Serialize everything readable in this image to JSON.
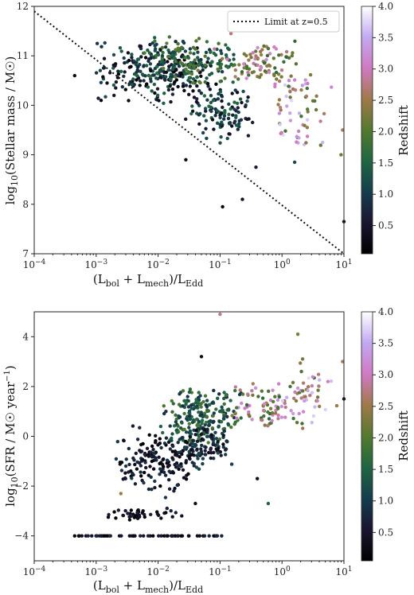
{
  "chart_data": [
    {
      "type": "scatter",
      "xscale": "log",
      "xlim": [
        0.0001,
        10
      ],
      "ylim": [
        7,
        12
      ],
      "xlabel": "(L_bol + L_mech)/L_Edd",
      "ylabel": "log10(Stellar mass / M☉)",
      "xticks": [
        0.0001,
        0.001,
        0.01,
        0.1,
        1,
        10
      ],
      "yticks": [
        7,
        8,
        9,
        10,
        11,
        12
      ],
      "legend": {
        "placement": "top-right",
        "entries": [
          "Limit at z=0.5"
        ]
      },
      "limit_line": {
        "name": "Limit at z=0.5",
        "style": "dotted",
        "x": [
          0.0001,
          10
        ],
        "y": [
          11.9,
          7.0
        ]
      },
      "colorbar": {
        "label": "Redshift",
        "range": [
          0.05,
          4.0
        ],
        "ticks": [
          0.5,
          1.0,
          1.5,
          2.0,
          2.5,
          3.0,
          3.5,
          4.0
        ]
      },
      "points_note": "approximately 800 points; values sampled to match visible distribution",
      "clusters": [
        {
          "logx_range": [
            -3.1,
            -0.9
          ],
          "y_range": [
            10.0,
            11.4
          ],
          "z_range": [
            0.05,
            1.6
          ],
          "n": 260
        },
        {
          "logx_range": [
            -2.4,
            -0.6
          ],
          "y_range": [
            10.4,
            11.4
          ],
          "z_range": [
            1.0,
            2.2
          ],
          "n": 150
        },
        {
          "logx_range": [
            -1.6,
            -0.4
          ],
          "y_range": [
            9.2,
            10.4
          ],
          "z_range": [
            0.3,
            1.6
          ],
          "n": 110
        },
        {
          "logx_range": [
            -1.2,
            0.4
          ],
          "y_range": [
            10.3,
            11.4
          ],
          "z_range": [
            1.6,
            3.2
          ],
          "n": 90
        },
        {
          "logx_range": [
            -0.3,
            0.9
          ],
          "y_range": [
            9.0,
            10.8
          ],
          "z_range": [
            1.8,
            3.8
          ],
          "n": 60
        }
      ],
      "outliers": [
        {
          "x": 0.00045,
          "y": 10.6,
          "z": 0.3
        },
        {
          "x": 0.0012,
          "y": 10.1,
          "z": 0.2
        },
        {
          "x": 0.0015,
          "y": 10.45,
          "z": 0.3
        },
        {
          "x": 0.11,
          "y": 7.95,
          "z": 0.2
        },
        {
          "x": 10,
          "y": 7.65,
          "z": 0.4
        },
        {
          "x": 0.23,
          "y": 8.1,
          "z": 0.5
        },
        {
          "x": 0.38,
          "y": 8.75,
          "z": 0.6
        },
        {
          "x": 1.6,
          "y": 8.85,
          "z": 1.2
        },
        {
          "x": 0.028,
          "y": 8.9,
          "z": 0.3
        },
        {
          "x": 0.15,
          "y": 11.45,
          "z": 2.7
        },
        {
          "x": 9.5,
          "y": 9.5,
          "z": 2.6
        },
        {
          "x": 9.0,
          "y": 9.0,
          "z": 2.2
        }
      ]
    },
    {
      "type": "scatter",
      "xscale": "log",
      "xlim": [
        0.0001,
        10
      ],
      "ylim": [
        -5,
        5
      ],
      "xlabel": "(L_bol + L_mech)/L_Edd",
      "ylabel": "log10(SFR / M☉ year⁻¹)",
      "xticks": [
        0.0001,
        0.001,
        0.01,
        0.1,
        1,
        10
      ],
      "yticks": [
        -4,
        -2,
        0,
        2,
        4
      ],
      "colorbar": {
        "label": "Redshift",
        "range": [
          0.05,
          4.0
        ],
        "ticks": [
          0.5,
          1.0,
          1.5,
          2.0,
          2.5,
          3.0,
          3.5,
          4.0
        ]
      },
      "points_note": "approximately 800 points; values sampled to match visible distribution",
      "clusters": [
        {
          "logx_range": [
            -2.0,
            -0.6
          ],
          "y_range": [
            -0.5,
            2.0
          ],
          "z_range": [
            0.8,
            2.0
          ],
          "n": 230
        },
        {
          "logx_range": [
            -2.8,
            -1.4
          ],
          "y_range": [
            -2.5,
            0.6
          ],
          "z_range": [
            0.05,
            1.0
          ],
          "n": 150
        },
        {
          "logx_range": [
            -1.8,
            -0.8
          ],
          "y_range": [
            -1.5,
            0.5
          ],
          "z_range": [
            0.2,
            1.2
          ],
          "n": 100
        },
        {
          "logx_range": [
            -1.0,
            0.5
          ],
          "y_range": [
            0.2,
            2.2
          ],
          "z_range": [
            1.6,
            3.4
          ],
          "n": 90
        },
        {
          "logx_range": [
            0.0,
            1.0
          ],
          "y_range": [
            0.2,
            3.2
          ],
          "z_range": [
            1.8,
            3.8
          ],
          "n": 40
        },
        {
          "logx_range": [
            -2.9,
            -1.6
          ],
          "y_range": [
            -3.4,
            -2.8
          ],
          "z_range": [
            0.05,
            0.8
          ],
          "n": 45
        }
      ],
      "floor_row": {
        "y": -4.0,
        "logx_range": [
          -3.3,
          -0.9
        ],
        "z_range": [
          0.05,
          0.8
        ],
        "n": 55
      },
      "outliers": [
        {
          "x": 0.00045,
          "y": -4.0,
          "z": 0.2
        },
        {
          "x": 0.1,
          "y": 4.9,
          "z": 2.8
        },
        {
          "x": 0.05,
          "y": 3.2,
          "z": 0.3
        },
        {
          "x": 1.8,
          "y": 4.1,
          "z": 2.3
        },
        {
          "x": 0.4,
          "y": -1.7,
          "z": 0.4
        },
        {
          "x": 0.6,
          "y": -2.7,
          "z": 1.5
        },
        {
          "x": 0.04,
          "y": -2.7,
          "z": 0.3
        },
        {
          "x": 0.0025,
          "y": -2.3,
          "z": 2.5
        },
        {
          "x": 10,
          "y": 1.5,
          "z": 0.3
        },
        {
          "x": 9.5,
          "y": 3.0,
          "z": 2.6
        }
      ]
    }
  ]
}
